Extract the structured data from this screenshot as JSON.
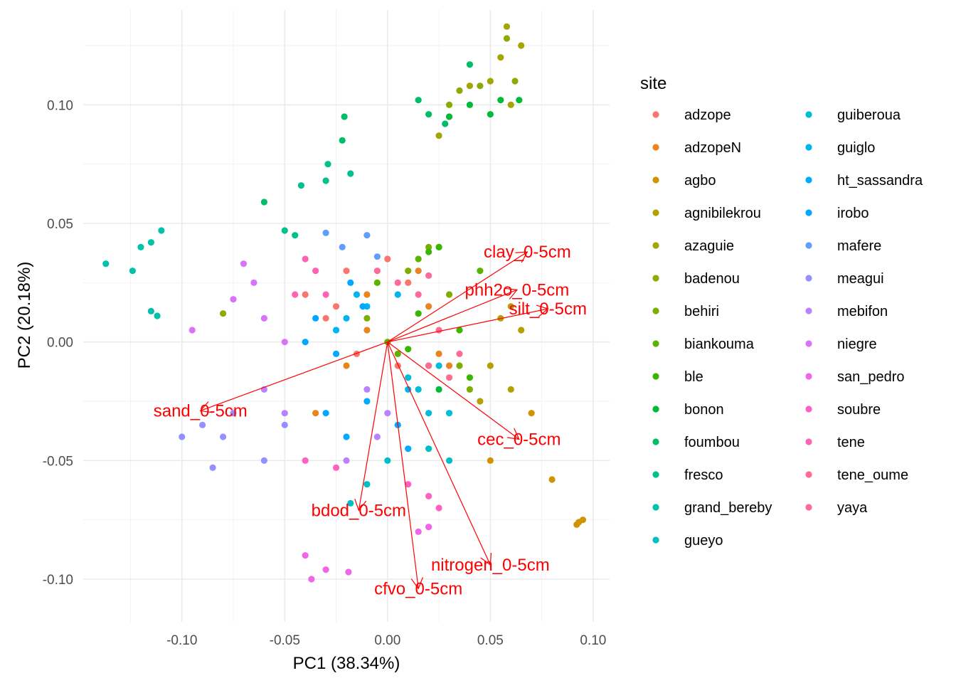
{
  "chart_data": {
    "type": "scatter",
    "subtype": "pca-biplot",
    "xlabel": "PC1 (38.34%)",
    "ylabel": "PC2 (20.18%)",
    "xlim": [
      -0.148,
      0.108
    ],
    "ylim": [
      -0.118,
      0.14
    ],
    "xticks": [
      -0.1,
      -0.05,
      0.0,
      0.05,
      0.1
    ],
    "xtick_labels": [
      "-0.10",
      "-0.05",
      "0.00",
      "0.05",
      "0.10"
    ],
    "yticks": [
      -0.1,
      -0.05,
      0.0,
      0.05,
      0.1
    ],
    "ytick_labels": [
      "-0.10",
      "-0.05",
      "0.00",
      "0.05",
      "0.10"
    ],
    "grid": true,
    "legend": {
      "title": "site",
      "placement": "right",
      "columns": 2,
      "entries": [
        {
          "name": "adzope",
          "color": "#F8766D"
        },
        {
          "name": "adzopeN",
          "color": "#E7851E"
        },
        {
          "name": "agbo",
          "color": "#D09400"
        },
        {
          "name": "agnibilekrou",
          "color": "#B2A100"
        },
        {
          "name": "azaguie",
          "color": "#A3A500"
        },
        {
          "name": "badenou",
          "color": "#8BAB00"
        },
        {
          "name": "behiri",
          "color": "#7CAE00"
        },
        {
          "name": "biankouma",
          "color": "#5BB300"
        },
        {
          "name": "ble",
          "color": "#39B600"
        },
        {
          "name": "bonon",
          "color": "#00BA38"
        },
        {
          "name": "foumbou",
          "color": "#00BE67"
        },
        {
          "name": "fresco",
          "color": "#00C08B"
        },
        {
          "name": "grand_bereby",
          "color": "#00C1AA"
        },
        {
          "name": "gueyo",
          "color": "#00BFC4"
        },
        {
          "name": "guiberoua",
          "color": "#00BCD8"
        },
        {
          "name": "guiglo",
          "color": "#00B4EF"
        },
        {
          "name": "ht_sassandra",
          "color": "#00ABFD"
        },
        {
          "name": "irobo",
          "color": "#00A9FF"
        },
        {
          "name": "mafere",
          "color": "#619CFF"
        },
        {
          "name": "meagui",
          "color": "#9590FF"
        },
        {
          "name": "mebifon",
          "color": "#B983FF"
        },
        {
          "name": "niegre",
          "color": "#DB72FB"
        },
        {
          "name": "san_pedro",
          "color": "#F166E8"
        },
        {
          "name": "soubre",
          "color": "#FF61C3"
        },
        {
          "name": "tene",
          "color": "#FF63B6"
        },
        {
          "name": "tene_oume",
          "color": "#FF6C91"
        },
        {
          "name": "yaya",
          "color": "#FF6A98"
        }
      ]
    },
    "loadings": {
      "color": "#FF0000",
      "origin": [
        0,
        0
      ],
      "vectors": [
        {
          "name": "clay_0-5cm",
          "x": 0.068,
          "y": 0.038
        },
        {
          "name": "phh2o_0-5cm",
          "x": 0.063,
          "y": 0.022
        },
        {
          "name": "silt_0-5cm",
          "x": 0.078,
          "y": 0.014
        },
        {
          "name": "sand_0-5cm",
          "x": -0.091,
          "y": -0.029
        },
        {
          "name": "cec_0-5cm",
          "x": 0.064,
          "y": -0.041
        },
        {
          "name": "bdod_0-5cm",
          "x": -0.014,
          "y": -0.071
        },
        {
          "name": "nitrogen_0-5cm",
          "x": 0.05,
          "y": -0.094
        },
        {
          "name": "cfvo_0-5cm",
          "x": 0.015,
          "y": -0.104
        }
      ]
    },
    "series": [
      {
        "name": "adzope",
        "points": [
          [
            -0.04,
            0.02
          ],
          [
            -0.03,
            0.01
          ],
          [
            -0.02,
            0.03
          ],
          [
            -0.015,
            -0.005
          ],
          [
            0.0,
            0.035
          ],
          [
            0.01,
            0.025
          ],
          [
            -0.025,
            0.015
          ],
          [
            0.005,
            -0.01
          ]
        ]
      },
      {
        "name": "adzopeN",
        "points": [
          [
            -0.035,
            -0.03
          ],
          [
            -0.02,
            -0.01
          ],
          [
            -0.01,
            0.02
          ],
          [
            0.02,
            0.015
          ],
          [
            0.03,
            -0.01
          ],
          [
            -0.01,
            0.005
          ],
          [
            0.015,
            0.03
          ],
          [
            0.025,
            -0.005
          ]
        ]
      },
      {
        "name": "agbo",
        "points": [
          [
            0.092,
            -0.077
          ],
          [
            0.095,
            -0.075
          ],
          [
            0.093,
            -0.076
          ],
          [
            0.08,
            -0.058
          ],
          [
            0.05,
            -0.05
          ],
          [
            0.07,
            -0.03
          ]
        ]
      },
      {
        "name": "agnibilekrou",
        "points": [
          [
            0.055,
            0.01
          ],
          [
            0.06,
            -0.02
          ],
          [
            0.05,
            -0.01
          ],
          [
            0.065,
            0.005
          ],
          [
            0.045,
            -0.025
          ],
          [
            0.06,
            0.015
          ]
        ]
      },
      {
        "name": "azaguie",
        "points": [
          [
            0.058,
            0.133
          ],
          [
            0.065,
            0.125
          ],
          [
            0.055,
            0.12
          ],
          [
            0.05,
            0.11
          ],
          [
            0.06,
            0.1
          ],
          [
            0.025,
            0.087
          ],
          [
            0.04,
            0.108
          ]
        ]
      },
      {
        "name": "badenou",
        "points": [
          [
            0.058,
            0.128
          ],
          [
            0.045,
            0.108
          ],
          [
            0.062,
            0.11
          ],
          [
            0.03,
            0.1
          ],
          [
            0.035,
            0.106
          ],
          [
            -0.08,
            0.012
          ]
        ]
      },
      {
        "name": "behiri",
        "points": [
          [
            0.01,
            0.03
          ],
          [
            0.02,
            0.04
          ],
          [
            0.03,
            0.02
          ],
          [
            -0.01,
            0.01
          ],
          [
            0.035,
            -0.01
          ],
          [
            0.04,
            -0.02
          ]
        ]
      },
      {
        "name": "biankouma",
        "points": [
          [
            0.015,
            0.035
          ],
          [
            0.025,
            0.04
          ],
          [
            0.0,
            0.0
          ],
          [
            0.005,
            -0.005
          ],
          [
            0.045,
            0.03
          ],
          [
            -0.005,
            0.025
          ]
        ]
      },
      {
        "name": "ble",
        "points": [
          [
            0.02,
            0.038
          ],
          [
            0.025,
            0.04
          ],
          [
            0.015,
            0.012
          ],
          [
            0.035,
            0.005
          ],
          [
            0.04,
            -0.015
          ],
          [
            0.01,
            -0.003
          ]
        ]
      },
      {
        "name": "bonon",
        "points": [
          [
            0.03,
            0.095
          ],
          [
            0.04,
            0.1
          ],
          [
            0.05,
            0.096
          ],
          [
            0.055,
            0.102
          ],
          [
            0.064,
            0.102
          ],
          [
            0.02,
            -0.01
          ],
          [
            0.025,
            -0.02
          ]
        ]
      },
      {
        "name": "foumbou",
        "points": [
          [
            0.04,
            0.117
          ],
          [
            0.015,
            0.102
          ],
          [
            0.02,
            0.096
          ],
          [
            0.028,
            0.092
          ],
          [
            -0.021,
            0.095
          ],
          [
            -0.022,
            0.085
          ],
          [
            -0.06,
            0.059
          ]
        ]
      },
      {
        "name": "fresco",
        "points": [
          [
            -0.029,
            0.075
          ],
          [
            -0.03,
            0.068
          ],
          [
            -0.018,
            0.071
          ],
          [
            -0.042,
            0.066
          ],
          [
            -0.05,
            0.047
          ],
          [
            -0.045,
            0.045
          ]
        ]
      },
      {
        "name": "grand_bereby",
        "points": [
          [
            -0.137,
            0.033
          ],
          [
            -0.124,
            0.03
          ],
          [
            -0.12,
            0.04
          ],
          [
            -0.115,
            0.042
          ],
          [
            -0.11,
            0.047
          ],
          [
            -0.112,
            0.011
          ],
          [
            -0.115,
            0.013
          ]
        ]
      },
      {
        "name": "gueyo",
        "points": [
          [
            -0.018,
            -0.068
          ],
          [
            -0.01,
            -0.06
          ],
          [
            0.0,
            -0.05
          ],
          [
            0.02,
            -0.045
          ],
          [
            0.03,
            -0.05
          ]
        ]
      },
      {
        "name": "guiberoua",
        "points": [
          [
            0.015,
            -0.02
          ],
          [
            0.02,
            -0.03
          ],
          [
            0.025,
            -0.01
          ],
          [
            0.03,
            -0.03
          ],
          [
            0.01,
            -0.015
          ]
        ]
      },
      {
        "name": "guiglo",
        "points": [
          [
            -0.02,
            0.01
          ],
          [
            -0.015,
            0.02
          ],
          [
            -0.01,
            0.015
          ],
          [
            0.005,
            0.02
          ],
          [
            0.01,
            -0.02
          ],
          [
            -0.025,
            0.005
          ]
        ]
      },
      {
        "name": "ht_sassandra",
        "points": [
          [
            -0.03,
            -0.03
          ],
          [
            -0.02,
            -0.04
          ],
          [
            -0.01,
            -0.025
          ],
          [
            0.005,
            -0.035
          ],
          [
            0.01,
            -0.045
          ]
        ]
      },
      {
        "name": "irobo",
        "points": [
          [
            -0.04,
            0.0
          ],
          [
            -0.035,
            0.01
          ],
          [
            -0.025,
            -0.005
          ],
          [
            -0.018,
            0.025
          ],
          [
            -0.012,
            0.015
          ]
        ]
      },
      {
        "name": "mafere",
        "points": [
          [
            -0.03,
            0.046
          ],
          [
            -0.01,
            0.045
          ],
          [
            -0.022,
            0.04
          ],
          [
            -0.005,
            0.036
          ]
        ]
      },
      {
        "name": "meagui",
        "points": [
          [
            -0.1,
            -0.04
          ],
          [
            -0.09,
            -0.035
          ],
          [
            -0.085,
            -0.053
          ],
          [
            -0.08,
            -0.04
          ],
          [
            -0.075,
            -0.03
          ],
          [
            -0.06,
            -0.05
          ],
          [
            -0.05,
            -0.035
          ]
        ]
      },
      {
        "name": "mebifon",
        "points": [
          [
            -0.06,
            -0.02
          ],
          [
            -0.05,
            -0.03
          ],
          [
            -0.02,
            -0.05
          ],
          [
            -0.01,
            -0.02
          ],
          [
            0.0,
            -0.03
          ],
          [
            -0.005,
            -0.04
          ]
        ]
      },
      {
        "name": "niegre",
        "points": [
          [
            -0.095,
            0.005
          ],
          [
            -0.075,
            0.018
          ],
          [
            -0.07,
            0.033
          ],
          [
            -0.065,
            0.025
          ],
          [
            -0.06,
            0.01
          ],
          [
            -0.05,
            0.0
          ]
        ]
      },
      {
        "name": "san_pedro",
        "points": [
          [
            -0.04,
            -0.09
          ],
          [
            -0.037,
            -0.1
          ],
          [
            -0.03,
            -0.096
          ],
          [
            -0.019,
            -0.097
          ],
          [
            0.015,
            -0.08
          ],
          [
            0.02,
            -0.078
          ]
        ]
      },
      {
        "name": "soubre",
        "points": [
          [
            -0.04,
            -0.05
          ],
          [
            -0.025,
            -0.053
          ],
          [
            0.01,
            -0.06
          ],
          [
            0.02,
            -0.065
          ],
          [
            0.025,
            -0.07
          ]
        ]
      },
      {
        "name": "tene",
        "points": [
          [
            -0.035,
            0.03
          ],
          [
            -0.045,
            0.02
          ],
          [
            -0.03,
            0.02
          ],
          [
            -0.04,
            0.035
          ]
        ]
      },
      {
        "name": "tene_oume",
        "points": [
          [
            0.02,
            -0.01
          ],
          [
            0.03,
            -0.015
          ],
          [
            0.035,
            -0.005
          ],
          [
            0.025,
            0.005
          ]
        ]
      },
      {
        "name": "yaya",
        "points": [
          [
            0.005,
            0.025
          ],
          [
            0.015,
            0.02
          ],
          [
            -0.005,
            0.03
          ],
          [
            0.02,
            0.028
          ]
        ]
      }
    ]
  }
}
